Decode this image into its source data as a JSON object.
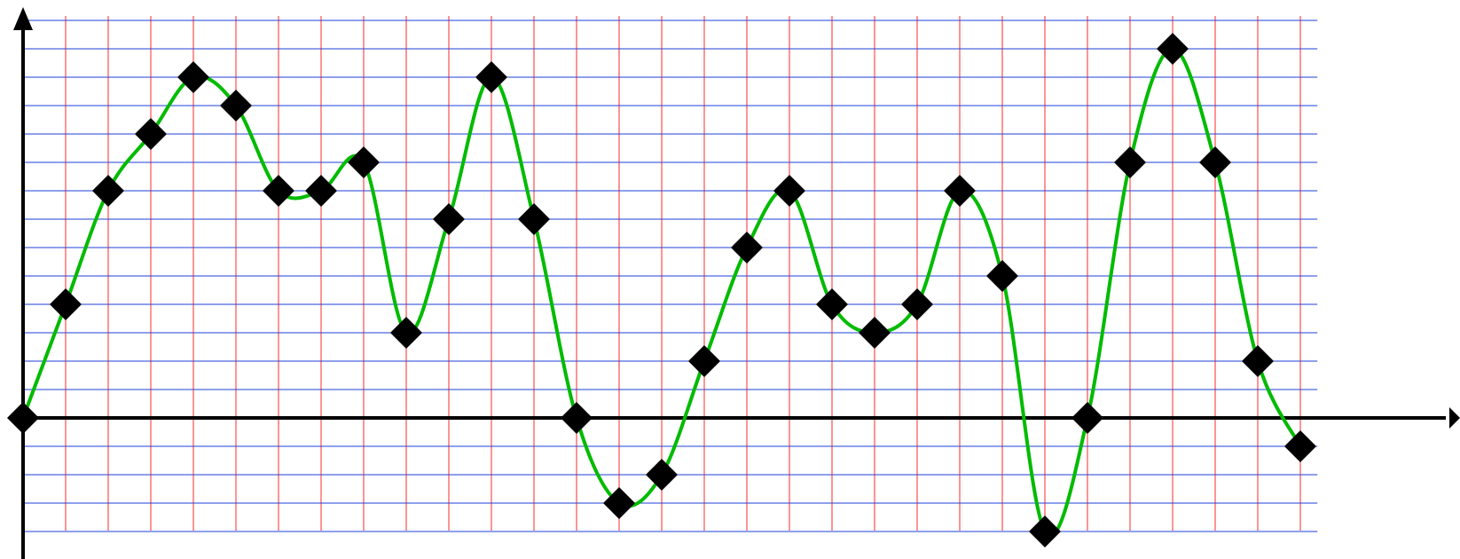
{
  "chart_data": {
    "type": "line",
    "x": [
      0,
      1,
      2,
      3,
      4,
      5,
      6,
      7,
      8,
      9,
      10,
      11,
      12,
      13,
      14,
      15,
      16,
      17,
      18,
      19,
      20,
      21,
      22,
      23,
      24,
      25,
      26,
      27,
      28,
      29,
      30
    ],
    "values": [
      0,
      4,
      8,
      10,
      12,
      11,
      8,
      8,
      9,
      3,
      7,
      12,
      7,
      0,
      -3,
      -2,
      2,
      6,
      8,
      4,
      3,
      4,
      8,
      5,
      -4,
      0,
      9,
      13,
      9,
      2,
      -1
    ],
    "xlim": [
      0,
      31
    ],
    "ylim": [
      -4,
      14
    ],
    "grid": true,
    "axis_arrows": true,
    "colors": {
      "line": "#00bb00",
      "marker": "#000000",
      "vertical_grid": "#ff4d4d",
      "horizontal_grid": "#1f3fd8",
      "axis": "#000000"
    }
  }
}
